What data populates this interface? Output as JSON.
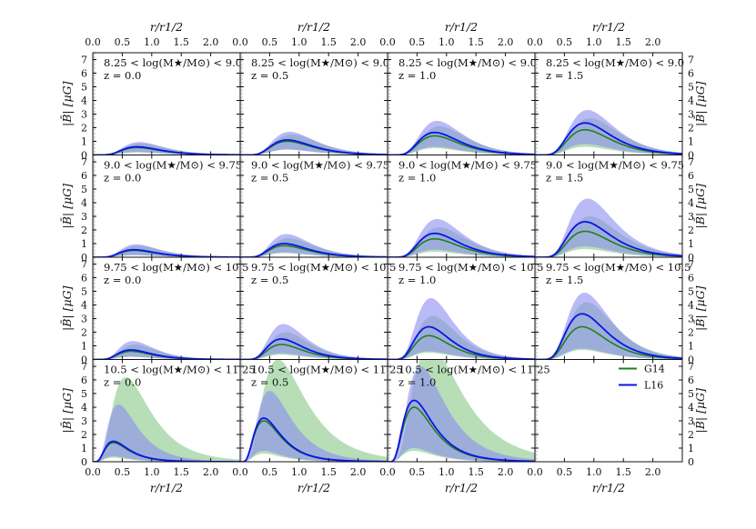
{
  "chart_data": {
    "type": "line",
    "layout": "4x4 grid",
    "xlabel": "r/r1/2",
    "ylabel": "|B̄| [μG]",
    "xlim": [
      0.0,
      2.5
    ],
    "ylim": [
      0,
      7.5
    ],
    "x_ticks": [
      "0.0",
      "0.5",
      "1.0",
      "1.5",
      "2.0"
    ],
    "y_ticks": [
      "0",
      "1",
      "2",
      "3",
      "4",
      "5",
      "6",
      "7"
    ],
    "series_names": [
      "G14",
      "L16"
    ],
    "colors": {
      "G14": "#1f7f1f",
      "L16": "#0a14e8",
      "G14_band": "#9fd39f",
      "L16_band": "#8c8cf2",
      "vline": "#bbbbbb"
    },
    "legend": {
      "placement": "top-right of bottom-right panel",
      "entries": [
        "G14",
        "L16"
      ]
    },
    "shaded_region_x": 0.03,
    "mass_bins": [
      "8.25 < log(M★/M⊙) < 9.0",
      "9.0 < log(M★/M⊙) < 9.75",
      "9.75 < log(M★/M⊙) < 10.5",
      "10.5 < log(M★/M⊙) < 11.25"
    ],
    "redshifts": [
      "z = 0.0",
      "z = 0.5",
      "z = 1.0",
      "z = 1.5"
    ],
    "panels": [
      {
        "row": 0,
        "col": 0,
        "empty": false,
        "peak_x": 0.75,
        "g14": 0.55,
        "l16": 0.6,
        "g14_upper": 0.85,
        "l16_upper": 0.95,
        "g14_lower": 0.2,
        "l16_lower": 0.2
      },
      {
        "row": 0,
        "col": 1,
        "empty": false,
        "peak_x": 0.8,
        "g14": 1.0,
        "l16": 1.1,
        "g14_upper": 1.5,
        "l16_upper": 1.7,
        "g14_lower": 0.4,
        "l16_lower": 0.4
      },
      {
        "row": 0,
        "col": 2,
        "empty": false,
        "peak_x": 0.8,
        "g14": 1.4,
        "l16": 1.65,
        "g14_upper": 2.1,
        "l16_upper": 2.5,
        "g14_lower": 0.5,
        "l16_lower": 0.6
      },
      {
        "row": 0,
        "col": 3,
        "empty": false,
        "peak_x": 0.85,
        "g14": 1.85,
        "l16": 2.35,
        "g14_upper": 2.7,
        "l16_upper": 3.3,
        "g14_lower": 0.6,
        "l16_lower": 0.8
      },
      {
        "row": 1,
        "col": 0,
        "empty": false,
        "peak_x": 0.7,
        "g14": 0.5,
        "l16": 0.55,
        "g14_upper": 0.85,
        "l16_upper": 0.95,
        "g14_lower": 0.15,
        "l16_lower": 0.15
      },
      {
        "row": 1,
        "col": 1,
        "empty": false,
        "peak_x": 0.75,
        "g14": 0.85,
        "l16": 1.0,
        "g14_upper": 1.4,
        "l16_upper": 1.7,
        "g14_lower": 0.3,
        "l16_lower": 0.35
      },
      {
        "row": 1,
        "col": 2,
        "empty": false,
        "peak_x": 0.8,
        "g14": 1.35,
        "l16": 1.75,
        "g14_upper": 2.2,
        "l16_upper": 2.8,
        "g14_lower": 0.4,
        "l16_lower": 0.55
      },
      {
        "row": 1,
        "col": 3,
        "empty": false,
        "peak_x": 0.85,
        "g14": 1.9,
        "l16": 2.6,
        "g14_upper": 3.0,
        "l16_upper": 4.3,
        "g14_lower": 0.6,
        "l16_lower": 0.8
      },
      {
        "row": 2,
        "col": 0,
        "empty": false,
        "peak_x": 0.65,
        "g14": 0.6,
        "l16": 0.7,
        "g14_upper": 1.1,
        "l16_upper": 1.35,
        "g14_lower": 0.2,
        "l16_lower": 0.2
      },
      {
        "row": 2,
        "col": 1,
        "empty": false,
        "peak_x": 0.7,
        "g14": 1.1,
        "l16": 1.5,
        "g14_upper": 2.0,
        "l16_upper": 2.6,
        "g14_lower": 0.35,
        "l16_lower": 0.45
      },
      {
        "row": 2,
        "col": 2,
        "empty": false,
        "peak_x": 0.7,
        "g14": 1.75,
        "l16": 2.4,
        "g14_upper": 3.2,
        "l16_upper": 4.5,
        "g14_lower": 0.5,
        "l16_lower": 0.6
      },
      {
        "row": 2,
        "col": 3,
        "empty": false,
        "peak_x": 0.8,
        "g14": 2.4,
        "l16": 3.35,
        "g14_upper": 4.2,
        "l16_upper": 4.9,
        "g14_lower": 0.7,
        "l16_lower": 0.8
      },
      {
        "row": 3,
        "col": 0,
        "empty": false,
        "peak_x": 0.35,
        "g14": 1.4,
        "l16": 1.5,
        "g14_upper": 6.2,
        "l16_upper": 4.2,
        "g14_lower": 0.3,
        "l16_lower": 0.4,
        "g14_tail": 1.0,
        "l16_tail": 0.55
      },
      {
        "row": 3,
        "col": 1,
        "empty": false,
        "peak_x": 0.4,
        "g14": 3.0,
        "l16": 3.2,
        "g14_upper": 7.5,
        "l16_upper": 5.2,
        "g14_lower": 0.6,
        "l16_lower": 0.8,
        "g14_tail": 1.0,
        "l16_tail": 0.45
      },
      {
        "row": 3,
        "col": 2,
        "empty": false,
        "peak_x": 0.45,
        "g14": 4.0,
        "l16": 4.5,
        "g14_upper": 8.5,
        "l16_upper": 7.0,
        "g14_lower": 0.8,
        "l16_lower": 1.0,
        "g14_tail": 0.95,
        "l16_tail": 0.35
      },
      {
        "row": 3,
        "col": 3,
        "empty": true
      }
    ]
  }
}
